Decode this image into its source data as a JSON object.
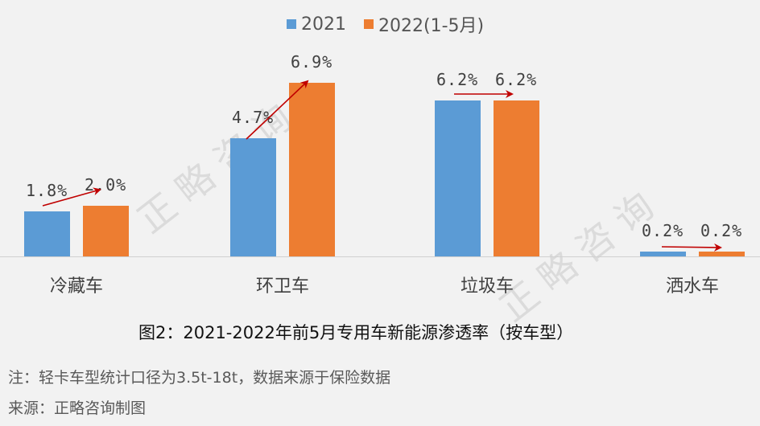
{
  "chart_data": {
    "type": "bar",
    "title": "图2：2021-2022年前5月专用车新能源渗透率（按车型）",
    "categories": [
      "冷藏车",
      "环卫车",
      "垃圾车",
      "洒水车"
    ],
    "series": [
      {
        "name": "2021",
        "color": "#5b9bd5",
        "values": [
          1.8,
          4.7,
          6.2,
          0.2
        ]
      },
      {
        "name": "2022(1-5月)",
        "color": "#ed7d31",
        "values": [
          2.0,
          6.9,
          6.2,
          0.2
        ]
      }
    ],
    "labels": {
      "2021": [
        "1.8%",
        "4.7%",
        "6.2%",
        "0.2%"
      ],
      "2022": [
        "2.0%",
        "6.9%",
        "6.2%",
        "0.2%"
      ]
    },
    "xlabel": "",
    "ylabel": "",
    "unit": "%",
    "ylim": [
      0,
      7
    ],
    "grid": false,
    "legend_position": "top",
    "annotations": [
      "red arrows from 2021 bar to 2022 bar in each category"
    ]
  },
  "legend": {
    "items": [
      {
        "label": "2021",
        "color": "#5b9bd5"
      },
      {
        "label": "2022(1-5月)",
        "color": "#ed7d31"
      }
    ]
  },
  "caption": "图2：2021-2022年前5月专用车新能源渗透率（按车型）",
  "notes": {
    "note": "注：轻卡车型统计口径为3.5t-18t，数据来源于保险数据",
    "source": "来源：正略咨询制图"
  },
  "watermark": "正略咨询",
  "arrow_color": "#c00000"
}
